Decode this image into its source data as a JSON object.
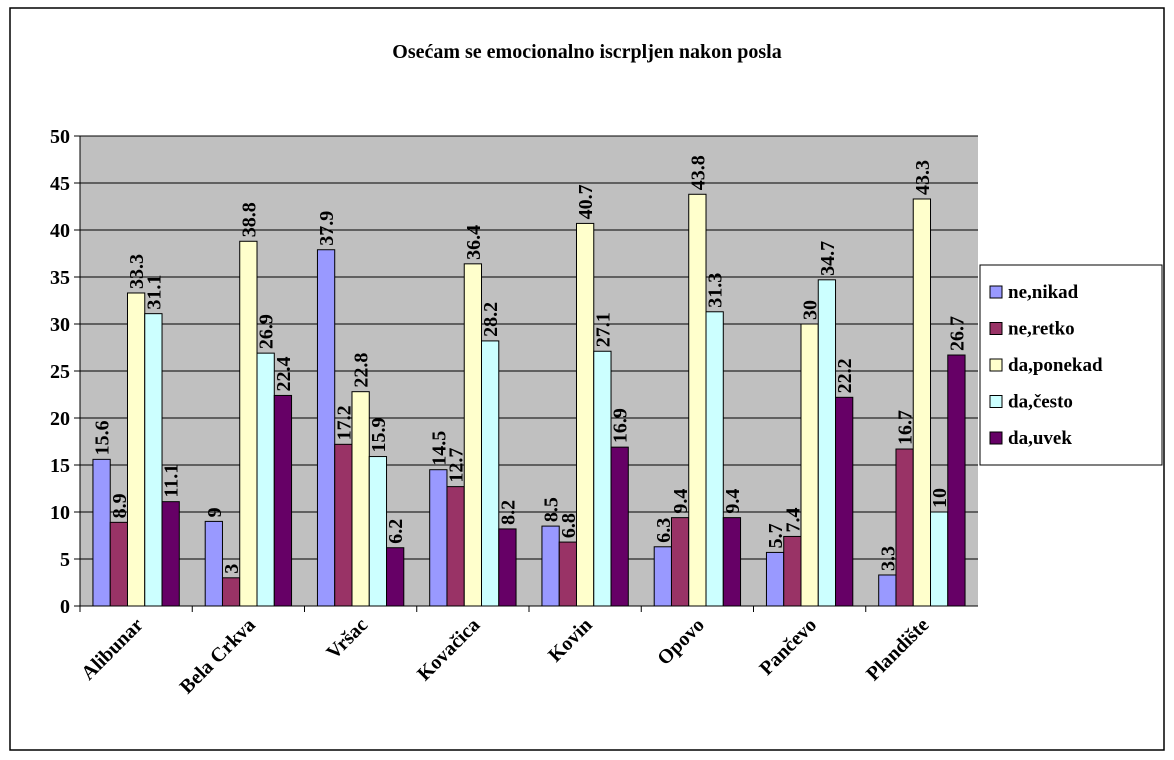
{
  "chart_data": {
    "type": "bar",
    "title": "Osećam se emocionalno iscrpljen nakon posla",
    "categories": [
      "Alibunar",
      "Bela Crkva",
      "Vršac",
      "Kovačica",
      "Kovin",
      "Opovo",
      "Pančevo",
      "Plandište"
    ],
    "series": [
      {
        "name": "ne,nikad",
        "color": "#9999ff",
        "values": [
          15.6,
          9,
          37.9,
          14.5,
          8.5,
          6.3,
          5.7,
          3.3
        ]
      },
      {
        "name": "ne,retko",
        "color": "#993366",
        "values": [
          8.9,
          3,
          17.2,
          12.7,
          6.8,
          9.4,
          7.4,
          16.7
        ]
      },
      {
        "name": "da,ponekad",
        "color": "#ffffcc",
        "values": [
          33.3,
          38.8,
          22.8,
          36.4,
          40.7,
          43.8,
          30,
          43.3
        ]
      },
      {
        "name": "da,često",
        "color": "#ccffff",
        "values": [
          31.1,
          26.9,
          15.9,
          28.2,
          27.1,
          31.3,
          34.7,
          10
        ]
      },
      {
        "name": "da,uvek",
        "color": "#660066",
        "values": [
          11.1,
          22.4,
          6.2,
          8.2,
          16.9,
          9.4,
          22.2,
          26.7
        ]
      }
    ],
    "ylim": [
      0,
      50
    ],
    "yticks": [
      0,
      5,
      10,
      15,
      20,
      25,
      30,
      35,
      40,
      45,
      50
    ],
    "grid": true,
    "legend": "right"
  }
}
